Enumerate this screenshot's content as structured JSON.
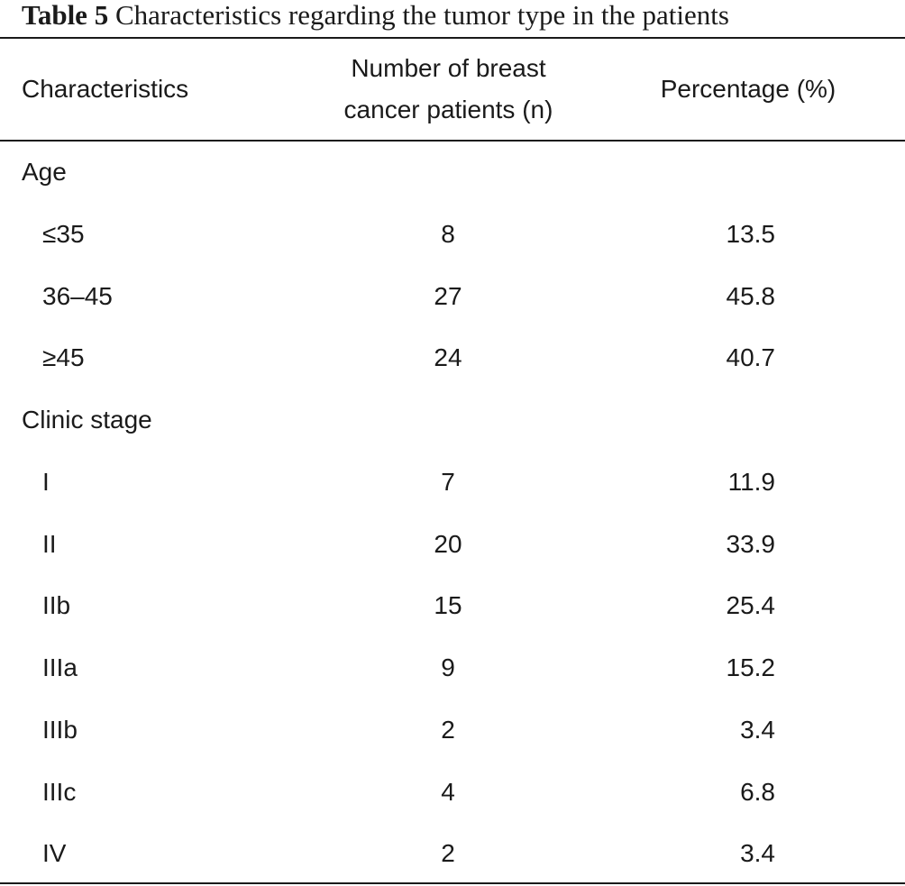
{
  "caption": {
    "label": "Table 5",
    "text": "Characteristics regarding the tumor type in the patients"
  },
  "headers": {
    "characteristics": "Characteristics",
    "number": "Number of breast cancer patients (n)",
    "percentage": "Percentage (%)"
  },
  "groups": [
    {
      "title": "Age",
      "rows": [
        {
          "label": "≤35",
          "n": "8",
          "pct": "13.5"
        },
        {
          "label": "36–45",
          "n": "27",
          "pct": "45.8"
        },
        {
          "label": "≥45",
          "n": "24",
          "pct": "40.7"
        }
      ]
    },
    {
      "title": "Clinic stage",
      "rows": [
        {
          "label": "I",
          "n": "7",
          "pct": "11.9"
        },
        {
          "label": "II",
          "n": "20",
          "pct": "33.9"
        },
        {
          "label": "IIb",
          "n": "15",
          "pct": "25.4"
        },
        {
          "label": "IIIa",
          "n": "9",
          "pct": "15.2"
        },
        {
          "label": "IIIb",
          "n": "2",
          "pct": "3.4"
        },
        {
          "label": "IIIc",
          "n": "4",
          "pct": "6.8"
        },
        {
          "label": "IV",
          "n": "2",
          "pct": "3.4"
        }
      ]
    }
  ]
}
